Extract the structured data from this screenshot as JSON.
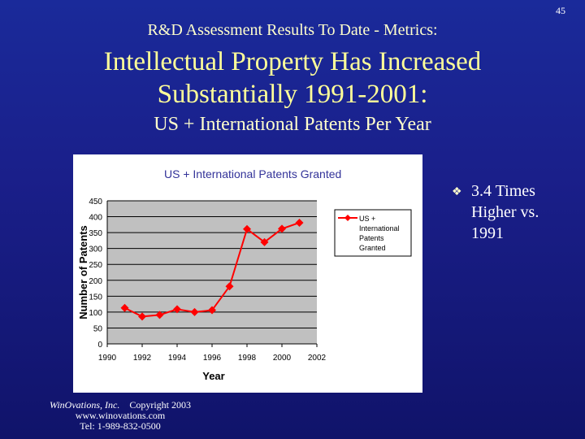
{
  "page_number": "45",
  "header": {
    "supertitle": "R&D Assessment Results To Date - Metrics:",
    "title_line1": "Intellectual Property Has Increased",
    "title_line2": "Substantially 1991-2001:",
    "subtitle": "US + International Patents Per Year"
  },
  "bullet": {
    "icon": "diamond-bullet-icon",
    "text": "3.4 Times Higher vs. 1991"
  },
  "footer": {
    "company": "WinOvations, Inc.",
    "copyright": "Copyright 2003",
    "website": "www.winovations.com",
    "phone": "Tel:  1-989-832-0500"
  },
  "chart_data": {
    "type": "line",
    "title": "US + International Patents Granted",
    "xlabel": "Year",
    "ylabel": "Number of Patents",
    "xlim": [
      1990,
      2002
    ],
    "ylim": [
      0,
      450
    ],
    "xticks": [
      1990,
      1992,
      1994,
      1996,
      1998,
      2000,
      2002
    ],
    "yticks": [
      0,
      50,
      100,
      150,
      200,
      250,
      300,
      350,
      400,
      450
    ],
    "grid": "horizontal",
    "plot_background": "#c0c0c0",
    "legend": {
      "placement": "right",
      "lines": [
        "US +",
        "International",
        "Patents",
        "Granted"
      ]
    },
    "series": [
      {
        "name": "US + International Patents Granted",
        "color": "#ff0000",
        "marker": "diamond",
        "x": [
          1991,
          1992,
          1993,
          1994,
          1995,
          1996,
          1997,
          1998,
          1999,
          2000,
          2001
        ],
        "y": [
          113,
          86,
          91,
          109,
          100,
          106,
          181,
          361,
          320,
          362,
          381
        ]
      }
    ]
  }
}
